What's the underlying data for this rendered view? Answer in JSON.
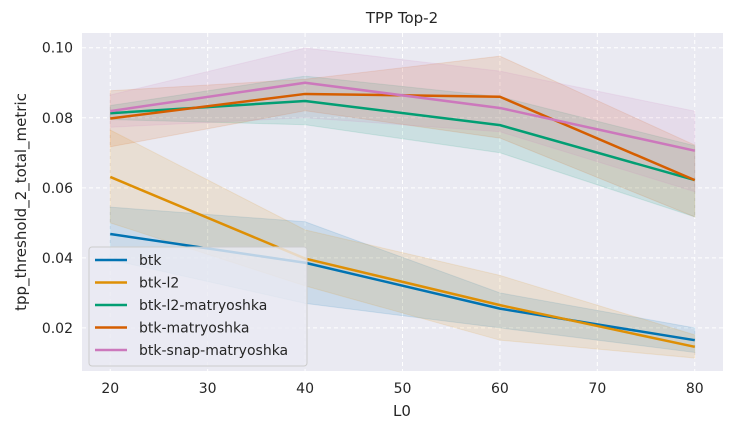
{
  "chart_data": {
    "type": "line",
    "title": "TPP Top-2",
    "xlabel": "L0",
    "ylabel": "tpp_threshold_2_total_metric",
    "x": [
      20,
      40,
      60,
      80
    ],
    "xlim": [
      17.1,
      82.9
    ],
    "ylim": [
      0.0077,
      0.1042
    ],
    "xticks": [
      20,
      30,
      40,
      50,
      60,
      70,
      80
    ],
    "xtick_labels": [
      "20",
      "30",
      "40",
      "50",
      "60",
      "70",
      "80"
    ],
    "yticks": [
      0.02,
      0.04,
      0.06,
      0.08,
      0.1
    ],
    "ytick_labels": [
      "0.02",
      "0.04",
      "0.06",
      "0.08",
      "0.10"
    ],
    "grid": true,
    "legend_position": "lower-left",
    "background": "#eaeaf2",
    "series": [
      {
        "name": "btk",
        "color": "#0173b2",
        "values": [
          0.0468,
          0.0386,
          0.0255,
          0.0165
        ],
        "ci_low": [
          0.0395,
          0.027,
          0.02,
          0.013
        ],
        "ci_high": [
          0.0545,
          0.0503,
          0.03,
          0.02
        ]
      },
      {
        "name": "btk-l2",
        "color": "#de8f05",
        "values": [
          0.0631,
          0.0398,
          0.0265,
          0.0146
        ],
        "ci_low": [
          0.05,
          0.032,
          0.0165,
          0.0114
        ],
        "ci_high": [
          0.0765,
          0.048,
          0.035,
          0.018
        ]
      },
      {
        "name": "btk-l2-matryoshka",
        "color": "#029e73",
        "values": [
          0.0813,
          0.0848,
          0.0779,
          0.0622
        ],
        "ci_low": [
          0.0795,
          0.078,
          0.07,
          0.0517
        ],
        "ci_high": [
          0.0835,
          0.0919,
          0.086,
          0.072
        ]
      },
      {
        "name": "btk-matryoshka",
        "color": "#d55e00",
        "values": [
          0.0798,
          0.0868,
          0.086,
          0.0622
        ],
        "ci_low": [
          0.0717,
          0.082,
          0.0742,
          0.0517
        ],
        "ci_high": [
          0.0877,
          0.091,
          0.0976,
          0.0722
        ]
      },
      {
        "name": "btk-snap-matryoshka",
        "color": "#cc78bc",
        "values": [
          0.0819,
          0.09,
          0.0828,
          0.0706
        ],
        "ci_low": [
          0.0773,
          0.08,
          0.076,
          0.0589
        ],
        "ci_high": [
          0.0865,
          0.0999,
          0.0933,
          0.0819
        ]
      }
    ]
  }
}
